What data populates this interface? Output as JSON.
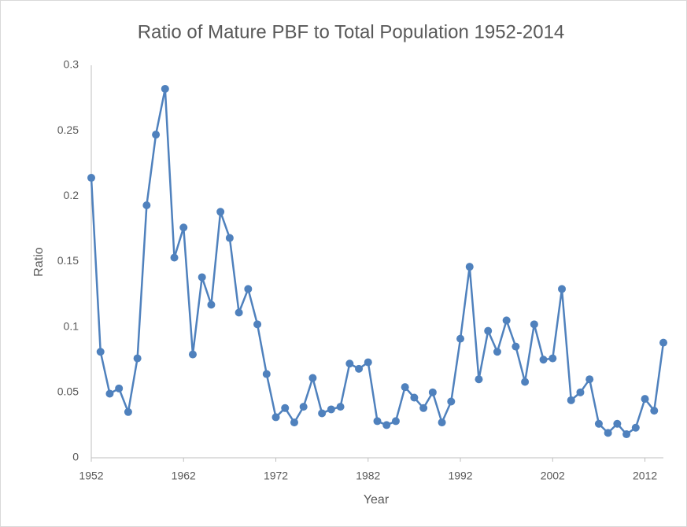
{
  "chart_data": {
    "type": "line",
    "title": "Ratio of Mature PBF to Total Population 1952-2014",
    "x_label": "Year",
    "y_label": "Ratio",
    "x": [
      1952,
      1953,
      1954,
      1955,
      1956,
      1957,
      1958,
      1959,
      1960,
      1961,
      1962,
      1963,
      1964,
      1965,
      1966,
      1967,
      1968,
      1969,
      1970,
      1971,
      1972,
      1973,
      1974,
      1975,
      1976,
      1977,
      1978,
      1979,
      1980,
      1981,
      1982,
      1983,
      1984,
      1985,
      1986,
      1987,
      1988,
      1989,
      1990,
      1991,
      1992,
      1993,
      1994,
      1995,
      1996,
      1997,
      1998,
      1999,
      2000,
      2001,
      2002,
      2003,
      2004,
      2005,
      2006,
      2007,
      2008,
      2009,
      2010,
      2011,
      2012,
      2013,
      2014
    ],
    "values": [
      0.214,
      0.081,
      0.049,
      0.053,
      0.035,
      0.076,
      0.193,
      0.247,
      0.282,
      0.153,
      0.176,
      0.079,
      0.138,
      0.117,
      0.188,
      0.168,
      0.111,
      0.129,
      0.102,
      0.064,
      0.031,
      0.038,
      0.027,
      0.039,
      0.061,
      0.034,
      0.037,
      0.039,
      0.072,
      0.068,
      0.073,
      0.028,
      0.025,
      0.028,
      0.054,
      0.046,
      0.038,
      0.05,
      0.027,
      0.043,
      0.091,
      0.146,
      0.06,
      0.097,
      0.081,
      0.105,
      0.085,
      0.058,
      0.102,
      0.075,
      0.076,
      0.129,
      0.044,
      0.05,
      0.06,
      0.026,
      0.019,
      0.026,
      0.018,
      0.023,
      0.045,
      0.036,
      0.088
    ],
    "color": "#4f81bd",
    "xlim": [
      1952,
      2014
    ],
    "xticks": [
      1952,
      1962,
      1972,
      1982,
      1992,
      2002,
      2012
    ],
    "ylim": [
      0,
      0.3
    ],
    "yticks": [
      0,
      0.05,
      0.1,
      0.15,
      0.2,
      0.25,
      0.3
    ],
    "grid": false
  }
}
